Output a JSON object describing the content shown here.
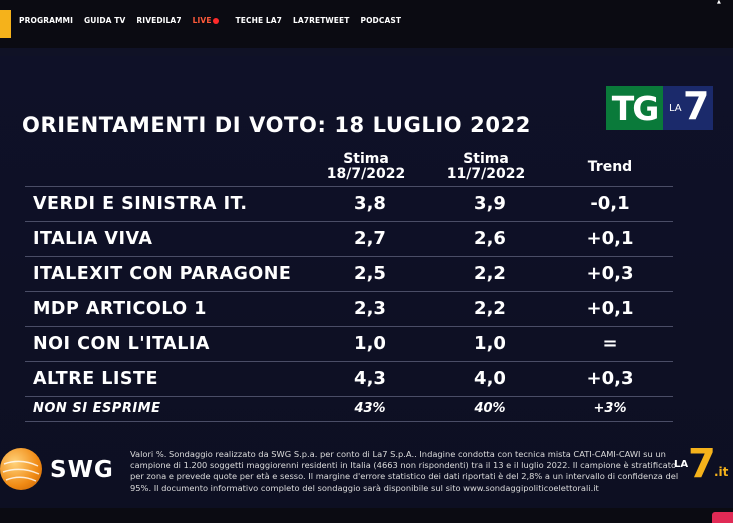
{
  "nav": {
    "items": [
      "PROGRAMMI",
      "GUIDA TV",
      "RIVEDILA7"
    ],
    "live_label": "LIVE",
    "items_after": [
      "TECHE LA7",
      "LA7RETWEET",
      "PODCAST"
    ]
  },
  "tg_logo": {
    "tg": "TG",
    "la": "LA",
    "seven": "7"
  },
  "title": "ORIENTAMENTI DI VOTO: 18 LUGLIO 2022",
  "headers": {
    "col1": [
      "Stima",
      "18/7/2022"
    ],
    "col2": [
      "Stima",
      "11/7/2022"
    ],
    "col3": "Trend"
  },
  "rows": [
    {
      "label": "VERDI E SINISTRA IT.",
      "v1": "3,8",
      "v2": "3,9",
      "trend": "-0,1"
    },
    {
      "label": "ITALIA VIVA",
      "v1": "2,7",
      "v2": "2,6",
      "trend": "+0,1"
    },
    {
      "label": "ITALEXIT CON PARAGONE",
      "v1": "2,5",
      "v2": "2,2",
      "trend": "+0,3"
    },
    {
      "label": "MDP ARTICOLO 1",
      "v1": "2,3",
      "v2": "2,2",
      "trend": "+0,1"
    },
    {
      "label": "NOI CON L'ITALIA",
      "v1": "1,0",
      "v2": "1,0",
      "trend": "="
    },
    {
      "label": "ALTRE LISTE",
      "v1": "4,3",
      "v2": "4,0",
      "trend": "+0,3"
    }
  ],
  "last_row": {
    "label": "NON SI ESPRIME",
    "v1": "43%",
    "v2": "40%",
    "trend": "+3%"
  },
  "swg": {
    "name": "SWG"
  },
  "footnote": "Valori %. Sondaggio realizzato da SWG S.p.a. per conto di La7 S.p.A.. Indagine condotta con tecnica mista CATI-CAMI-CAWI su un campione di 1.200 soggetti maggiorenni residenti in Italia (4663 non rispondenti) tra il 13 e il luglio 2022. Il campione è stratificato per zona e prevede quote per età e sesso. Il margine d'errore statistico dei dati riportati è del 2,8% a un intervallo di confidenza del 95%. Il documento informativo completo del sondaggio sarà disponibile sul sito www.sondaggipoliticoelettorali.it",
  "corner_logo": {
    "la": "LA",
    "seven": "7",
    "it": ".it"
  },
  "colors": {
    "background": "#0c0d1f",
    "accent": "#f5b21b",
    "tg_green": "#0a7a3a",
    "tg_blue": "#1b2a6b",
    "live": "#ff2a2a"
  }
}
